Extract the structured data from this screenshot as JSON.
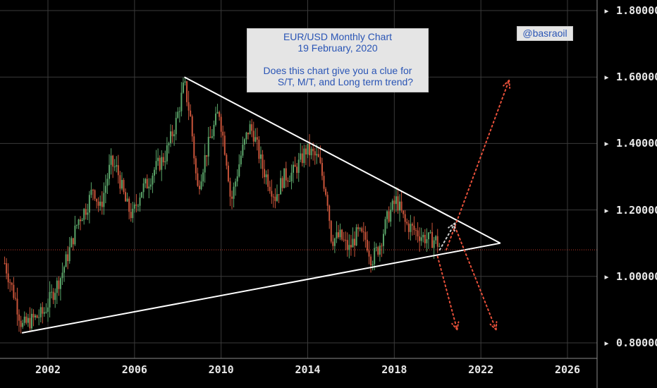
{
  "chart_data": {
    "type": "candlestick",
    "x_range": [
      1999.5,
      2027.5
    ],
    "ylim": [
      0.78,
      1.83
    ],
    "x_ticks": [
      2002,
      2006,
      2010,
      2014,
      2018,
      2022,
      2026
    ],
    "x_tick_labels": [
      "2002",
      "2006",
      "2010",
      "2014",
      "2018",
      "2022",
      "2026"
    ],
    "y_ticks": [
      0.8,
      1.0,
      1.2,
      1.4,
      1.6,
      1.8
    ],
    "y_tick_labels": [
      "0.80000",
      "1.00000",
      "1.20000",
      "1.40000",
      "1.60000",
      "1.80000"
    ],
    "grid": true,
    "horizontal_level": 1.08,
    "close_path": [
      [
        2000.0,
        1.04
      ],
      [
        2000.5,
        0.93
      ],
      [
        2000.8,
        0.85
      ],
      [
        2001.3,
        0.87
      ],
      [
        2001.8,
        0.89
      ],
      [
        2002.3,
        0.96
      ],
      [
        2002.6,
        1.0
      ],
      [
        2003.0,
        1.08
      ],
      [
        2003.4,
        1.17
      ],
      [
        2003.8,
        1.21
      ],
      [
        2004.1,
        1.27
      ],
      [
        2004.4,
        1.2
      ],
      [
        2004.9,
        1.34
      ],
      [
        2005.2,
        1.32
      ],
      [
        2005.6,
        1.22
      ],
      [
        2005.9,
        1.18
      ],
      [
        2006.3,
        1.26
      ],
      [
        2006.6,
        1.28
      ],
      [
        2006.9,
        1.32
      ],
      [
        2007.4,
        1.36
      ],
      [
        2007.9,
        1.46
      ],
      [
        2008.3,
        1.58
      ],
      [
        2008.6,
        1.47
      ],
      [
        2008.9,
        1.26
      ],
      [
        2009.3,
        1.37
      ],
      [
        2009.9,
        1.5
      ],
      [
        2010.3,
        1.33
      ],
      [
        2010.45,
        1.22
      ],
      [
        2010.9,
        1.36
      ],
      [
        2011.3,
        1.45
      ],
      [
        2011.5,
        1.43
      ],
      [
        2011.9,
        1.33
      ],
      [
        2012.5,
        1.24
      ],
      [
        2012.9,
        1.3
      ],
      [
        2013.3,
        1.31
      ],
      [
        2013.7,
        1.35
      ],
      [
        2013.9,
        1.38
      ],
      [
        2014.2,
        1.37
      ],
      [
        2014.5,
        1.35
      ],
      [
        2014.9,
        1.24
      ],
      [
        2015.1,
        1.11
      ],
      [
        2015.5,
        1.12
      ],
      [
        2015.9,
        1.08
      ],
      [
        2016.3,
        1.13
      ],
      [
        2016.7,
        1.11
      ],
      [
        2016.95,
        1.05
      ],
      [
        2017.3,
        1.09
      ],
      [
        2017.7,
        1.18
      ],
      [
        2018.1,
        1.23
      ],
      [
        2018.5,
        1.16
      ],
      [
        2018.9,
        1.14
      ],
      [
        2019.3,
        1.12
      ],
      [
        2019.6,
        1.11
      ],
      [
        2019.9,
        1.11
      ],
      [
        2020.1,
        1.09
      ]
    ],
    "trendlines": [
      {
        "name": "descending-resistance",
        "from": [
          2008.3,
          1.6
        ],
        "to": [
          2022.9,
          1.1
        ]
      },
      {
        "name": "ascending-support",
        "from": [
          2000.8,
          0.83
        ],
        "to": [
          2022.9,
          1.1
        ]
      }
    ],
    "projections": [
      {
        "name": "long-term-up",
        "from": [
          2020.4,
          1.08
        ],
        "to": [
          2023.3,
          1.59
        ]
      },
      {
        "name": "short-term-down",
        "from": [
          2020.0,
          1.06
        ],
        "to": [
          2020.9,
          0.84
        ]
      },
      {
        "name": "medium-term-down",
        "from": [
          2020.8,
          1.15
        ],
        "to": [
          2022.7,
          0.84
        ]
      },
      {
        "name": "bounce",
        "from": [
          2020.1,
          1.08
        ],
        "to": [
          2020.8,
          1.16
        ]
      }
    ],
    "colors": {
      "background": "#000000",
      "up": "#5aa469",
      "down": "#c9543a",
      "trendline": "#ffffff",
      "projection": "#e8503a",
      "bounce": "#d0d0d0",
      "grid": "#3a3a3a",
      "level": "#c0392b"
    }
  },
  "annotation": {
    "line1": "EUR/USD Monthly Chart",
    "line2": "19 February, 2020",
    "line3": "Does this chart give you a clue for",
    "line4": "S/T, M/T, and Long term trend?"
  },
  "handle": "@basraoil"
}
